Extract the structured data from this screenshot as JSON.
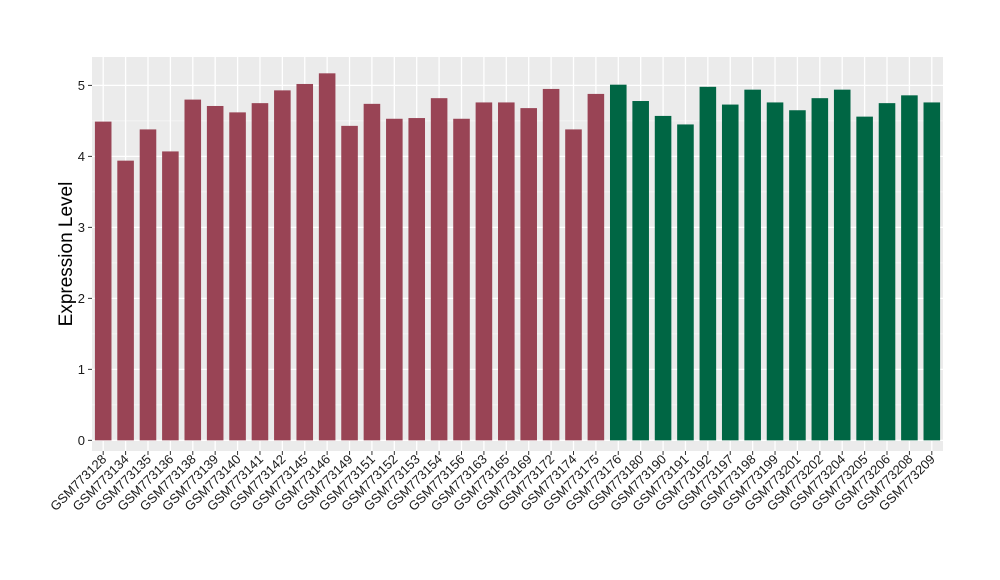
{
  "chart_data": {
    "type": "bar",
    "ylabel": "Expression Level",
    "xlabel": "",
    "ylim": [
      -0.15,
      5.4
    ],
    "yticks": [
      0,
      1,
      2,
      3,
      4,
      5
    ],
    "grid": true,
    "panel_background": "#ebebeb",
    "colors": {
      "group_a": "#994455",
      "group_b": "#006644"
    },
    "categories": [
      "GSM773128",
      "GSM773134",
      "GSM773135",
      "GSM773136",
      "GSM773138",
      "GSM773139",
      "GSM773140",
      "GSM773141",
      "GSM773142",
      "GSM773145",
      "GSM773146",
      "GSM773149",
      "GSM773151",
      "GSM773152",
      "GSM773153",
      "GSM773154",
      "GSM773156",
      "GSM773163",
      "GSM773165",
      "GSM773169",
      "GSM773172",
      "GSM773174",
      "GSM773175",
      "GSM773176",
      "GSM773180",
      "GSM773190",
      "GSM773191",
      "GSM773192",
      "GSM773197",
      "GSM773198",
      "GSM773199",
      "GSM773201",
      "GSM773202",
      "GSM773204",
      "GSM773205",
      "GSM773206",
      "GSM773208",
      "GSM773209"
    ],
    "values": [
      4.49,
      3.94,
      4.38,
      4.07,
      4.8,
      4.71,
      4.62,
      4.75,
      4.93,
      5.02,
      5.17,
      4.43,
      4.74,
      4.53,
      4.54,
      4.82,
      4.53,
      4.76,
      4.76,
      4.68,
      4.95,
      4.38,
      4.88,
      5.01,
      4.78,
      4.57,
      4.45,
      4.98,
      4.73,
      4.94,
      4.76,
      4.65,
      4.82,
      4.94,
      4.56,
      4.75,
      4.86,
      4.76
    ],
    "groups": [
      "a",
      "a",
      "a",
      "a",
      "a",
      "a",
      "a",
      "a",
      "a",
      "a",
      "a",
      "a",
      "a",
      "a",
      "a",
      "a",
      "a",
      "a",
      "a",
      "a",
      "a",
      "a",
      "a",
      "b",
      "b",
      "b",
      "b",
      "b",
      "b",
      "b",
      "b",
      "b",
      "b",
      "b",
      "b",
      "b",
      "b",
      "b"
    ]
  }
}
